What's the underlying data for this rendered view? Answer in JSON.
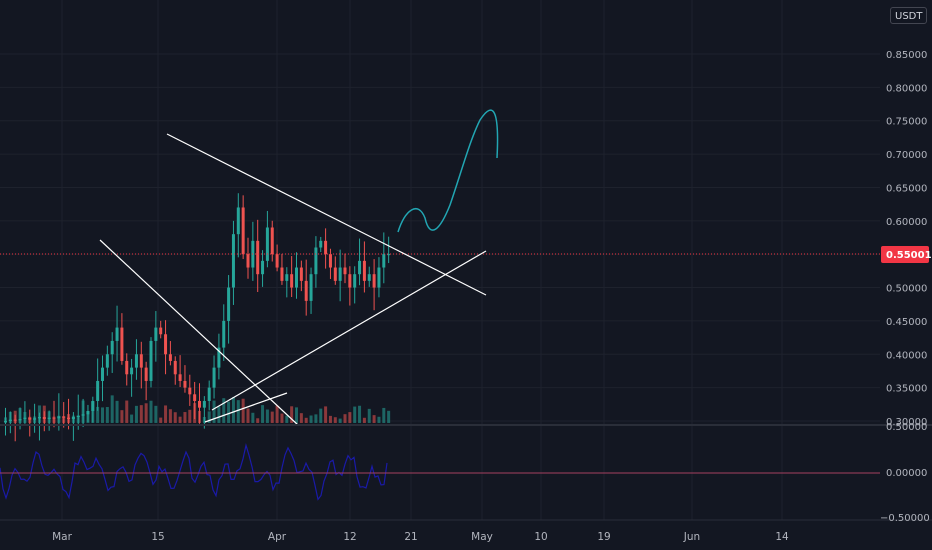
{
  "currency": "USDT",
  "colors": {
    "background": "#131722",
    "grid": "#1e222d",
    "up": "#26a69a",
    "down": "#ef5350",
    "trendline": "#ffffff",
    "arrow": "#22a6b3",
    "last_price": "#f23645",
    "oscillator": "#1a1aa8",
    "oscillator_zero": "#a64060"
  },
  "price_axis": {
    "labels": [
      "0.85000",
      "0.80000",
      "0.75000",
      "0.70000",
      "0.65000",
      "0.60000",
      "0.50000",
      "0.45000",
      "0.40000",
      "0.35000",
      "0.30000"
    ],
    "last_price": "0.55001"
  },
  "oscillator_axis": {
    "labels": [
      "0.50000",
      "0.00000",
      "−0.50000"
    ]
  },
  "time_axis": {
    "labels": [
      "Mar",
      "15",
      "Apr",
      "12",
      "21",
      "May",
      "10",
      "19",
      "Jun",
      "14"
    ]
  },
  "chart_data": {
    "type": "candlestick",
    "symbol_currency": "USDT",
    "x_range": [
      "Mar",
      "Jun 14"
    ],
    "ylim": [
      0.3,
      0.88
    ],
    "last_price": 0.55001,
    "closes": [
      0.3,
      0.302,
      0.301,
      0.303,
      0.305,
      0.302,
      0.304,
      0.306,
      0.303,
      0.305,
      0.304,
      0.307,
      0.305,
      0.303,
      0.306,
      0.308,
      0.31,
      0.315,
      0.33,
      0.36,
      0.38,
      0.4,
      0.42,
      0.44,
      0.39,
      0.37,
      0.38,
      0.4,
      0.38,
      0.36,
      0.42,
      0.44,
      0.43,
      0.4,
      0.39,
      0.37,
      0.36,
      0.35,
      0.34,
      0.33,
      0.32,
      0.33,
      0.35,
      0.38,
      0.41,
      0.45,
      0.5,
      0.58,
      0.62,
      0.55,
      0.53,
      0.57,
      0.52,
      0.54,
      0.59,
      0.55,
      0.53,
      0.51,
      0.52,
      0.5,
      0.53,
      0.51,
      0.48,
      0.52,
      0.56,
      0.57,
      0.55,
      0.53,
      0.51,
      0.53,
      0.52,
      0.5,
      0.52,
      0.54,
      0.51,
      0.52,
      0.5,
      0.53,
      0.55,
      0.55
    ]
  }
}
